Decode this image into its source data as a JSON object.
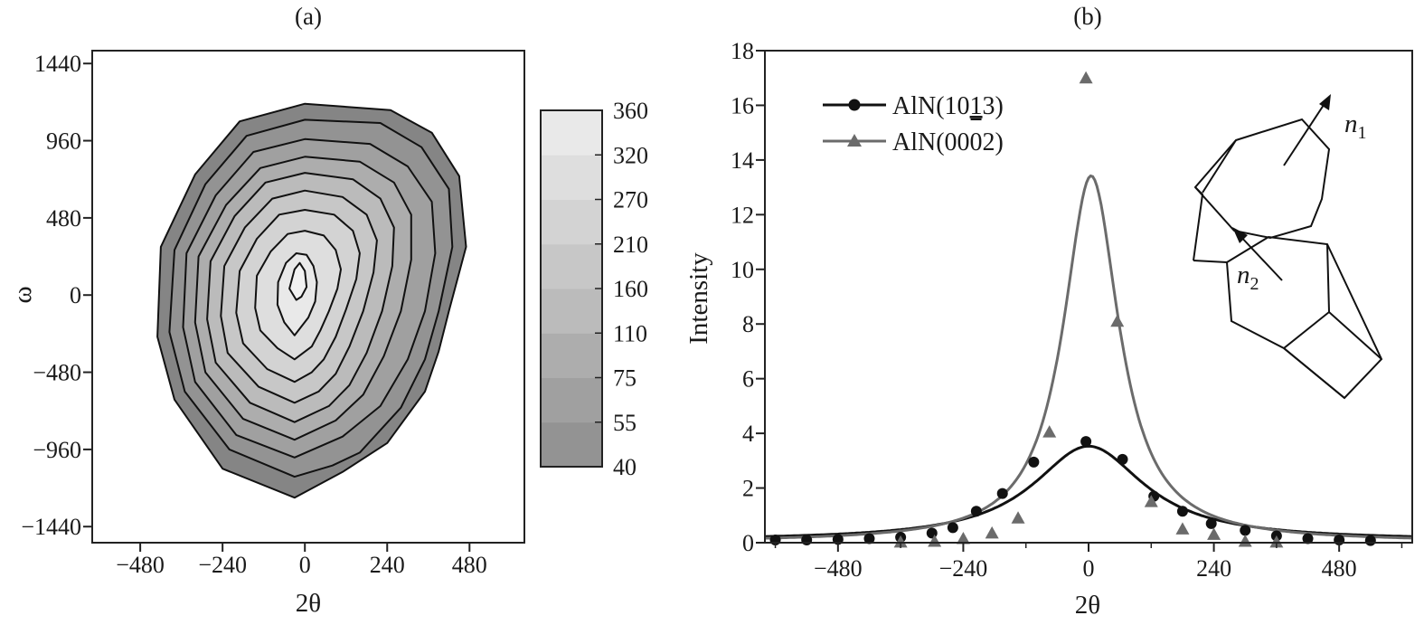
{
  "chart_data": [
    {
      "type": "heatmap",
      "subtype": "contour",
      "panel_label": "(a)",
      "xlabel": "2θ",
      "ylabel": "ω",
      "xlim": [
        -620,
        640
      ],
      "ylim": [
        -1540,
        1520
      ],
      "xticks": [
        -480,
        -240,
        0,
        240,
        480
      ],
      "yticks": [
        -1440,
        -960,
        -480,
        0,
        480,
        960,
        1440
      ],
      "xtick_labels": [
        "−480",
        "−240",
        "0",
        "240",
        "480"
      ],
      "ytick_labels": [
        "−1440",
        "−960",
        "−480",
        "0",
        "480",
        "960",
        "1440"
      ],
      "colorbar": {
        "levels": [
          40,
          55,
          75,
          110,
          160,
          210,
          270,
          320,
          360
        ],
        "labels": [
          "40",
          "55",
          "75",
          "110",
          "160",
          "210",
          "270",
          "320",
          "360"
        ],
        "colors": [
          "#858585",
          "#939393",
          "#a0a0a0",
          "#adadad",
          "#bbbbbb",
          "#c7c7c7",
          "#d3d3d3",
          "#dedede",
          "#e9e9e9",
          "#f2f2f2"
        ]
      },
      "center": [
        -30,
        40
      ],
      "contours": [
        {
          "level": 40,
          "poly": [
            [
              -30,
              -1260
            ],
            [
              -240,
              -1080
            ],
            [
              -380,
              -650
            ],
            [
              -430,
              -260
            ],
            [
              -420,
              300
            ],
            [
              -320,
              750
            ],
            [
              -190,
              1080
            ],
            [
              0,
              1190
            ],
            [
              250,
              1150
            ],
            [
              370,
              1010
            ],
            [
              450,
              740
            ],
            [
              470,
              300
            ],
            [
              420,
              -100
            ],
            [
              390,
              -350
            ],
            [
              350,
              -600
            ],
            [
              240,
              -920
            ],
            [
              110,
              -1100
            ]
          ]
        },
        {
          "level": 55,
          "poly": [
            [
              -30,
              -1130
            ],
            [
              -220,
              -960
            ],
            [
              -350,
              -600
            ],
            [
              -395,
              -230
            ],
            [
              -380,
              280
            ],
            [
              -290,
              690
            ],
            [
              -170,
              990
            ],
            [
              0,
              1090
            ],
            [
              220,
              1070
            ],
            [
              340,
              920
            ],
            [
              420,
              660
            ],
            [
              430,
              300
            ],
            [
              390,
              -100
            ],
            [
              350,
              -400
            ],
            [
              280,
              -700
            ],
            [
              160,
              -980
            ],
            [
              80,
              -1060
            ]
          ]
        },
        {
          "level": 75,
          "poly": [
            [
              -30,
              -1010
            ],
            [
              -200,
              -870
            ],
            [
              -320,
              -540
            ],
            [
              -355,
              -200
            ],
            [
              -345,
              260
            ],
            [
              -260,
              620
            ],
            [
              -150,
              890
            ],
            [
              0,
              970
            ],
            [
              190,
              940
            ],
            [
              300,
              800
            ],
            [
              370,
              580
            ],
            [
              380,
              260
            ],
            [
              350,
              -100
            ],
            [
              300,
              -400
            ],
            [
              220,
              -690
            ],
            [
              110,
              -880
            ]
          ]
        },
        {
          "level": 110,
          "poly": [
            [
              -30,
              -900
            ],
            [
              -180,
              -770
            ],
            [
              -290,
              -480
            ],
            [
              -320,
              -170
            ],
            [
              -310,
              240
            ],
            [
              -230,
              560
            ],
            [
              -130,
              790
            ],
            [
              0,
              860
            ],
            [
              160,
              830
            ],
            [
              260,
              700
            ],
            [
              310,
              500
            ],
            [
              310,
              220
            ],
            [
              280,
              -100
            ],
            [
              230,
              -380
            ],
            [
              170,
              -620
            ],
            [
              90,
              -780
            ]
          ]
        },
        {
          "level": 160,
          "poly": [
            [
              -30,
              -790
            ],
            [
              -160,
              -670
            ],
            [
              -260,
              -420
            ],
            [
              -285,
              -150
            ],
            [
              -275,
              210
            ],
            [
              -205,
              490
            ],
            [
              -115,
              700
            ],
            [
              0,
              760
            ],
            [
              140,
              720
            ],
            [
              220,
              600
            ],
            [
              260,
              420
            ],
            [
              255,
              180
            ],
            [
              225,
              -100
            ],
            [
              180,
              -360
            ],
            [
              130,
              -560
            ],
            [
              70,
              -690
            ]
          ]
        },
        {
          "level": 210,
          "poly": [
            [
              -30,
              -670
            ],
            [
              -135,
              -570
            ],
            [
              -225,
              -360
            ],
            [
              -245,
              -130
            ],
            [
              -235,
              180
            ],
            [
              -175,
              420
            ],
            [
              -95,
              600
            ],
            [
              0,
              650
            ],
            [
              110,
              610
            ],
            [
              180,
              500
            ],
            [
              210,
              340
            ],
            [
              200,
              140
            ],
            [
              170,
              -100
            ],
            [
              130,
              -320
            ],
            [
              90,
              -490
            ],
            [
              40,
              -600
            ]
          ]
        },
        {
          "level": 270,
          "poly": [
            [
              -30,
              -540
            ],
            [
              -110,
              -460
            ],
            [
              -180,
              -300
            ],
            [
              -200,
              -110
            ],
            [
              -190,
              150
            ],
            [
              -140,
              350
            ],
            [
              -75,
              500
            ],
            [
              0,
              530
            ],
            [
              85,
              500
            ],
            [
              140,
              400
            ],
            [
              160,
              260
            ],
            [
              150,
              100
            ],
            [
              120,
              -90
            ],
            [
              90,
              -260
            ],
            [
              55,
              -400
            ],
            [
              20,
              -480
            ]
          ]
        },
        {
          "level": 320,
          "poly": [
            [
              -30,
              -400
            ],
            [
              -80,
              -330
            ],
            [
              -130,
              -220
            ],
            [
              -145,
              -80
            ],
            [
              -140,
              120
            ],
            [
              -100,
              270
            ],
            [
              -50,
              380
            ],
            [
              0,
              400
            ],
            [
              55,
              370
            ],
            [
              90,
              280
            ],
            [
              105,
              160
            ],
            [
              95,
              40
            ],
            [
              70,
              -100
            ],
            [
              45,
              -220
            ],
            [
              20,
              -320
            ]
          ]
        },
        {
          "level": 360,
          "poly": [
            [
              -30,
              -250
            ],
            [
              -60,
              -170
            ],
            [
              -80,
              -60
            ],
            [
              -78,
              80
            ],
            [
              -55,
              200
            ],
            [
              -25,
              260
            ],
            [
              5,
              250
            ],
            [
              25,
              180
            ],
            [
              35,
              80
            ],
            [
              30,
              -40
            ],
            [
              10,
              -140
            ]
          ]
        },
        {
          "level": 360,
          "poly": [
            [
              -25,
              -30
            ],
            [
              -45,
              40
            ],
            [
              -30,
              160
            ],
            [
              -15,
              200
            ],
            [
              0,
              150
            ],
            [
              5,
              50
            ],
            [
              -10,
              -10
            ]
          ]
        }
      ]
    },
    {
      "type": "line",
      "panel_label": "(b)",
      "xlabel": "2θ",
      "ylabel": "Intensity",
      "xlim": [
        -620,
        620
      ],
      "ylim": [
        0,
        18
      ],
      "xticks": [
        -480,
        -240,
        0,
        240,
        480
      ],
      "yticks": [
        0,
        2,
        4,
        6,
        8,
        10,
        12,
        14,
        16,
        18
      ],
      "xtick_labels": [
        "−480",
        "−240",
        "0",
        "240",
        "480"
      ],
      "ytick_labels": [
        "0",
        "2",
        "4",
        "6",
        "8",
        "10",
        "12",
        "14",
        "16",
        "18"
      ],
      "legend_position": "top-left",
      "series": [
        {
          "name": "AlN(10",
          "name_underlined": "1",
          "name_tail": "3)",
          "color": "#111111",
          "marker": "circle",
          "points": [
            [
              -600,
              0.1
            ],
            [
              -540,
              0.1
            ],
            [
              -480,
              0.12
            ],
            [
              -420,
              0.15
            ],
            [
              -360,
              0.2
            ],
            [
              -300,
              0.35
            ],
            [
              -260,
              0.55
            ],
            [
              -215,
              1.15
            ],
            [
              -165,
              1.8
            ],
            [
              -105,
              2.95
            ],
            [
              -5,
              3.7
            ],
            [
              65,
              3.05
            ],
            [
              125,
              1.7
            ],
            [
              180,
              1.15
            ],
            [
              235,
              0.7
            ],
            [
              300,
              0.45
            ],
            [
              360,
              0.25
            ],
            [
              420,
              0.15
            ],
            [
              480,
              0.1
            ],
            [
              540,
              0.08
            ]
          ],
          "fit": {
            "amplitude": 3.45,
            "center": 0,
            "fwhm": 260,
            "baseline": 0.08
          }
        },
        {
          "name": "AlN(0002)",
          "color": "#6b6b6b",
          "marker": "triangle",
          "points": [
            [
              -360,
              0.02
            ],
            [
              -295,
              0.05
            ],
            [
              -240,
              0.15
            ],
            [
              -185,
              0.35
            ],
            [
              -135,
              0.9
            ],
            [
              -75,
              4.05
            ],
            [
              -5,
              17.0
            ],
            [
              55,
              8.1
            ],
            [
              120,
              1.5
            ],
            [
              180,
              0.5
            ],
            [
              240,
              0.3
            ],
            [
              300,
              0.05
            ],
            [
              360,
              0.02
            ]
          ],
          "fit": {
            "amplitude": 13.4,
            "center": 5,
            "fwhm": 130,
            "baseline": 0.02
          }
        }
      ],
      "inset": {
        "labels": [
          "n",
          "1",
          "n",
          "2"
        ]
      }
    }
  ]
}
